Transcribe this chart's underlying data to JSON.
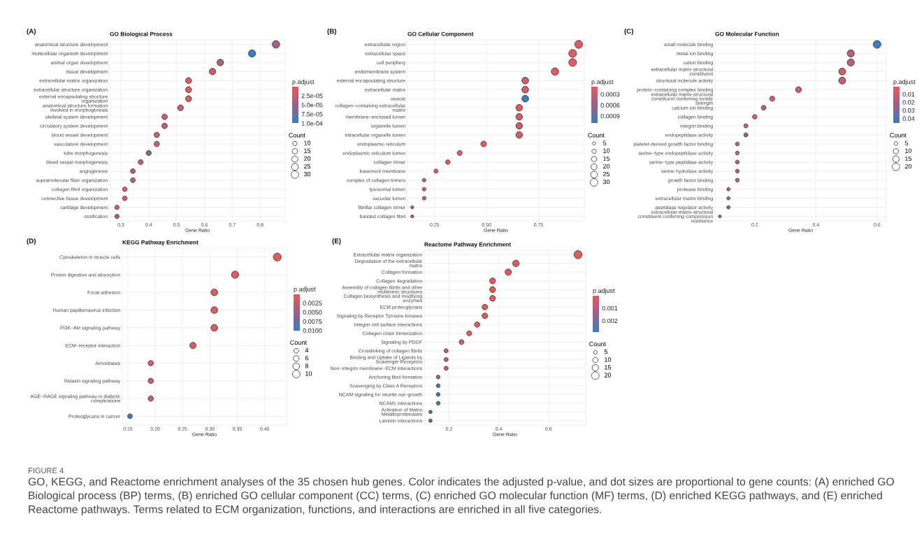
{
  "chart_data": [
    {
      "type": "bubble",
      "orientation": "horizontal",
      "title": "GO Biological Process",
      "xlabel": "Gene Ratio",
      "clabel": "p.adjust",
      "legend_title": "Count",
      "grid": true,
      "annotations": [
        "(A)"
      ],
      "categories": [
        "anatomical structure development",
        "multicellular organism development",
        "animal organ development",
        "tissue development",
        "extracellular matrix organization",
        "extracellular structure organization",
        "external encapsulating structure\norganization",
        "anatomical structure formation\ninvolved in morphogenesis",
        "skeletal system development",
        "circulatory system development",
        "blood vessel development",
        "vasculature development",
        "tube morphogenesis",
        "blood vessel morphogenesis",
        "angiogenesis",
        "supramolecular fiber organization",
        "collagen fibril organization",
        "connective tissue development",
        "cartilage development",
        "ossification"
      ],
      "values": [
        0.857,
        0.771,
        0.657,
        0.629,
        0.543,
        0.543,
        0.543,
        0.514,
        0.457,
        0.457,
        0.429,
        0.429,
        0.4,
        0.371,
        0.343,
        0.343,
        0.314,
        0.314,
        0.286,
        0.286
      ],
      "sizes": [
        30,
        27,
        23,
        22,
        19,
        19,
        19,
        18,
        16,
        16,
        15,
        15,
        14,
        13,
        12,
        12,
        11,
        11,
        10,
        10
      ],
      "size_legend": [
        10,
        15,
        20,
        25,
        30
      ],
      "cvalues": [
        4.5e-05,
        0.0001,
        4e-05,
        1.5e-05,
        5e-06,
        5e-06,
        5e-06,
        1.5e-05,
        1e-05,
        1.5e-05,
        1.5e-05,
        1.5e-05,
        6e-05,
        2e-05,
        3.5e-05,
        3.5e-05,
        5e-06,
        1e-05,
        1.5e-05,
        5e-05
      ],
      "clim": [
        1e-06,
        0.0001
      ],
      "cticks": [
        {
          "value": 2.5e-05,
          "label": "2.5e-05"
        },
        {
          "value": 5e-05,
          "label": "5.0e-05"
        },
        {
          "value": 7.5e-05,
          "label": "7.5e-05"
        },
        {
          "value": 0.0001,
          "label": "1.0e-04"
        }
      ],
      "xlim": [
        0.26,
        0.89
      ],
      "xticks": [
        0.3,
        0.4,
        0.5,
        0.6,
        0.7,
        0.8
      ]
    },
    {
      "type": "bubble",
      "orientation": "horizontal",
      "title": "GO Cellular Component",
      "xlabel": "Gene Ratio",
      "clabel": "p.adjust",
      "legend_title": "Count",
      "grid": true,
      "annotations": [
        "(B)"
      ],
      "categories": [
        "extracellular region",
        "extracellular space",
        "cell periphery",
        "endomembrane system",
        "external encapsulating structure",
        "extracellular matrix",
        "vesicle",
        "collagen−containing extracellular\nmatrix",
        "membrane−enclosed lumen",
        "organelle lumen",
        "intracellular organelle lumen",
        "endoplasmic reticulum",
        "endoplasmic reticulum lumen",
        "collagen trimer",
        "basement membrane",
        "complex of collagen trimers",
        "lysosomal lumen",
        "vacuolar lumen",
        "fibrillar collagen trimer",
        "banded collagen fibril"
      ],
      "values": [
        0.943,
        0.914,
        0.914,
        0.829,
        0.686,
        0.686,
        0.686,
        0.657,
        0.657,
        0.657,
        0.657,
        0.486,
        0.371,
        0.314,
        0.257,
        0.2,
        0.2,
        0.2,
        0.143,
        0.143
      ],
      "sizes": [
        33,
        32,
        32,
        29,
        24,
        24,
        24,
        23,
        23,
        23,
        23,
        17,
        13,
        11,
        9,
        7,
        7,
        7,
        5,
        5
      ],
      "size_legend": [
        5,
        10,
        15,
        20,
        25,
        30
      ],
      "cvalues": [
        0.0001,
        0.0001,
        0.0001,
        0.0001,
        0.0002,
        0.0002,
        0.0011,
        0.0001,
        0.0002,
        0.0002,
        0.0002,
        0.0001,
        0.0001,
        0.0001,
        0.0001,
        0.0003,
        0.0002,
        0.0002,
        0.0004,
        0.0004
      ],
      "clim": [
        0.0001,
        0.0011
      ],
      "cticks": [
        0.0003,
        0.0006,
        0.0009
      ],
      "xlim": [
        0.12,
        0.97
      ],
      "xticks": [
        0.25,
        {
          "value": 0.5,
          "label": "0.50"
        },
        0.75
      ]
    },
    {
      "type": "bubble",
      "orientation": "horizontal",
      "title": "GO Molecular Function",
      "xlabel": "Gene Ratio",
      "clabel": "p.adjust",
      "legend_title": "Count",
      "grid": true,
      "annotations": [
        "(C)"
      ],
      "categories": [
        "small molecule binding",
        "metal ion binding",
        "cation binding",
        "extracellular matrix structural\nconstituent",
        "structural molecule activity",
        "protein−containing complex binding",
        "extracellular matrix structural\nconstituent conferring tensile\nstrength",
        "calcium ion binding",
        "collagen binding",
        "integrin binding",
        "endopeptidase activity",
        "platelet-derived growth factor binding",
        "serine−type endopeptidase activity",
        "serine−type peptidase activity",
        "serine hydrolase activity",
        "growth factor binding",
        "protease binding",
        "extracellular matrix binding",
        "peptidase regulator activity",
        "extracellular matrix structural\nconstituent conferring compression\nresistance"
      ],
      "values": [
        0.6,
        0.514,
        0.514,
        0.486,
        0.486,
        0.343,
        0.257,
        0.229,
        0.2,
        0.171,
        0.171,
        0.143,
        0.143,
        0.143,
        0.143,
        0.143,
        0.114,
        0.114,
        0.114,
        0.086
      ],
      "sizes": [
        21,
        18,
        18,
        17,
        17,
        12,
        9,
        8,
        7,
        6,
        6,
        5,
        5,
        5,
        5,
        5,
        4,
        4,
        4,
        3
      ],
      "size_legend": [
        5,
        10,
        15,
        20
      ],
      "cvalues": [
        0.046,
        0.012,
        0.012,
        0.008,
        0.008,
        0.005,
        0.003,
        0.012,
        0.004,
        0.005,
        0.027,
        0.004,
        0.01,
        0.012,
        0.012,
        0.01,
        0.014,
        0.012,
        0.036,
        0.025
      ],
      "clim": [
        0.001,
        0.046
      ],
      "cticks": [
        0.01,
        0.02,
        0.03,
        0.04
      ],
      "xlim": [
        0.07,
        0.63
      ],
      "xticks": [
        0.2,
        0.4,
        0.6
      ]
    },
    {
      "type": "bubble",
      "orientation": "horizontal",
      "title": "KEGG Pathway Enrichment",
      "xlabel": "Gene Ratio",
      "clabel": "p.adjust",
      "legend_title": "Count",
      "grid": true,
      "annotations": [
        "(D)"
      ],
      "categories": [
        "Cytoskeleton in muscle cells",
        "Protein digestion and absorption",
        "Focal adhesion",
        "Human papillomavirus infection",
        "PI3K−Akt signaling pathway",
        "ECM−receptor interaction",
        "Amoebiasis",
        "Relaxin signaling pathway",
        "AGE−RAGE signaling pathway in diabetic\ncomplications",
        "Proteoglycans in cancer"
      ],
      "values": [
        0.423,
        0.346,
        0.308,
        0.308,
        0.308,
        0.269,
        0.192,
        0.192,
        0.192,
        0.154
      ],
      "sizes": [
        11,
        9,
        8,
        8,
        8,
        7,
        5,
        5,
        5,
        4
      ],
      "size_legend": [
        4,
        6,
        8,
        10
      ],
      "cvalues": [
        0.0005,
        0.0003,
        0.0003,
        0.0003,
        0.0003,
        0.0003,
        0.0005,
        0.002,
        0.0015,
        0.01
      ],
      "clim": [
        0.0001,
        0.01
      ],
      "cticks": [
        0.0025,
        {
          "value": 0.005,
          "label": "0.0050"
        },
        0.0075,
        {
          "value": 0.01,
          "label": "0.0100"
        }
      ],
      "xlim": [
        0.14,
        0.44
      ],
      "xticks": [
        0.15,
        {
          "value": 0.2,
          "label": "0.20"
        },
        0.25,
        {
          "value": 0.3,
          "label": "0.30"
        },
        0.35,
        {
          "value": 0.4,
          "label": "0.40"
        }
      ]
    },
    {
      "type": "bubble",
      "orientation": "horizontal",
      "title": "Reactome Pathway Enrichment",
      "xlabel": "Gene Ratio",
      "clabel": "p.adjust",
      "legend_title": "Count",
      "grid": true,
      "annotations": [
        "(E)",
        "FIGURE 4",
        "GO, KEGG, and Reactome enrichment analyses of the 35 chosen hub genes. Color indicates the adjusted p-value, and dot sizes are proportional to gene counts: (A) enriched GO Biological process (BP) terms, (B) enriched GO cellular component (CC) terms, (C) enriched GO molecular function (MF) terms, (D) enriched KEGG pathways, and (E) enriched Reactome pathways. Terms related to ECM organization, functions, and interactions are enriched in all five categories."
      ],
      "categories": [
        "Extracellular matrix organization",
        "Degradation of the extracellular\nmatrix",
        "Collagen formation",
        "Collagen degradation",
        "Assembly of collagen fibrils and other\nmultimeric structures",
        "Collagen biosynthesis and modifying\nenzymes",
        "ECM proteoglycans",
        "Signaling by Receptor Tyrosine Kinases",
        "Integrin cell surface interactions",
        "Collagen chain trimerization",
        "Signaling by PDGF",
        "Crosslinking of collagen fibrils",
        "Binding and Uptake of Ligands by\nScavenger Receptors",
        "Non−integrin membrane−ECM interactions",
        "Anchoring fibril formation",
        "Scavenging by Class A Receptors",
        "NCAM signaling for neurite out−growth",
        "NCAM1 interactions",
        "Activation of Matrix\nMetalloproteinases",
        "Laminin interactions"
      ],
      "values": [
        0.719,
        0.469,
        0.438,
        0.375,
        0.375,
        0.375,
        0.344,
        0.344,
        0.313,
        0.281,
        0.25,
        0.188,
        0.188,
        0.188,
        0.156,
        0.156,
        0.156,
        0.156,
        0.125,
        0.125
      ],
      "sizes": [
        23,
        15,
        14,
        12,
        12,
        12,
        11,
        11,
        10,
        9,
        8,
        6,
        6,
        6,
        5,
        5,
        5,
        5,
        4,
        4
      ],
      "size_legend": [
        5,
        10,
        15,
        20
      ],
      "cvalues": [
        0.0001,
        0.0001,
        0.0001,
        0.0001,
        0.0001,
        0.0001,
        0.0001,
        0.0001,
        0.0001,
        0.0001,
        0.0001,
        0.0004,
        0.0008,
        0.0008,
        0.0012,
        0.0029,
        0.0029,
        0.0029,
        0.0029,
        0.0029
      ],
      "clim": [
        2e-05,
        0.0029
      ],
      "cticks": [
        0.001,
        0.002
      ],
      "xlim": [
        0.1,
        0.75
      ],
      "xticks": [
        0.2,
        0.4,
        0.6
      ]
    }
  ]
}
